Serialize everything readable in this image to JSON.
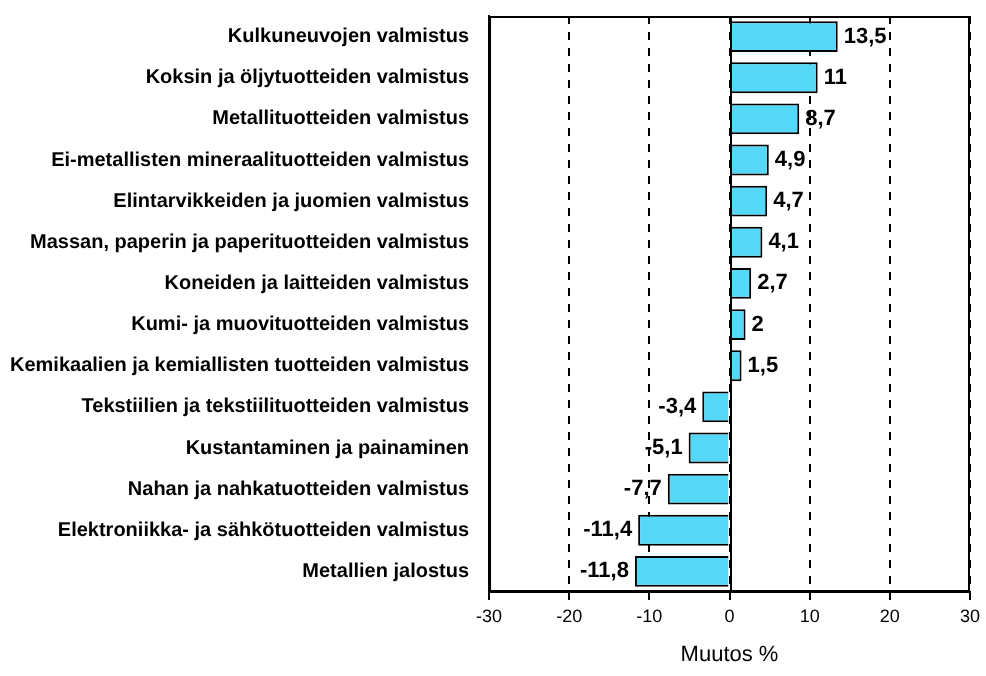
{
  "chart_data": {
    "type": "bar",
    "orientation": "horizontal",
    "xlabel": "Muutos %",
    "categories": [
      "Kulkuneuvojen valmistus",
      "Koksin ja öljytuotteiden valmistus",
      "Metallituotteiden valmistus",
      "Ei-metallisten mineraalituotteiden valmistus",
      "Elintarvikkeiden ja juomien valmistus",
      "Massan, paperin ja paperituotteiden valmistus",
      "Koneiden ja laitteiden valmistus",
      "Kumi- ja muovituotteiden valmistus",
      "Kemikaalien ja kemiallisten tuotteiden valmistus",
      "Tekstiilien ja tekstiilituotteiden valmistus",
      "Kustantaminen ja painaminen",
      "Nahan ja nahkatuotteiden valmistus",
      "Elektroniikka- ja sähkötuotteiden valmistus",
      "Metallien jalostus"
    ],
    "values": [
      13.5,
      11,
      8.7,
      4.9,
      4.7,
      4.1,
      2.7,
      2,
      1.5,
      -3.4,
      -5.1,
      -7.7,
      -11.4,
      -11.8
    ],
    "value_labels": [
      "13,5",
      "11",
      "8,7",
      "4,9",
      "4,7",
      "4,1",
      "2,7",
      "2",
      "1,5",
      "-3,4",
      "-5,1",
      "-7,7",
      "-11,4",
      "-11,8"
    ],
    "color": "#55d8f8",
    "xlim": [
      -30,
      30
    ],
    "xticks": [
      -30,
      -20,
      -10,
      0,
      10,
      20,
      30
    ],
    "grid": "x",
    "legend": false
  }
}
